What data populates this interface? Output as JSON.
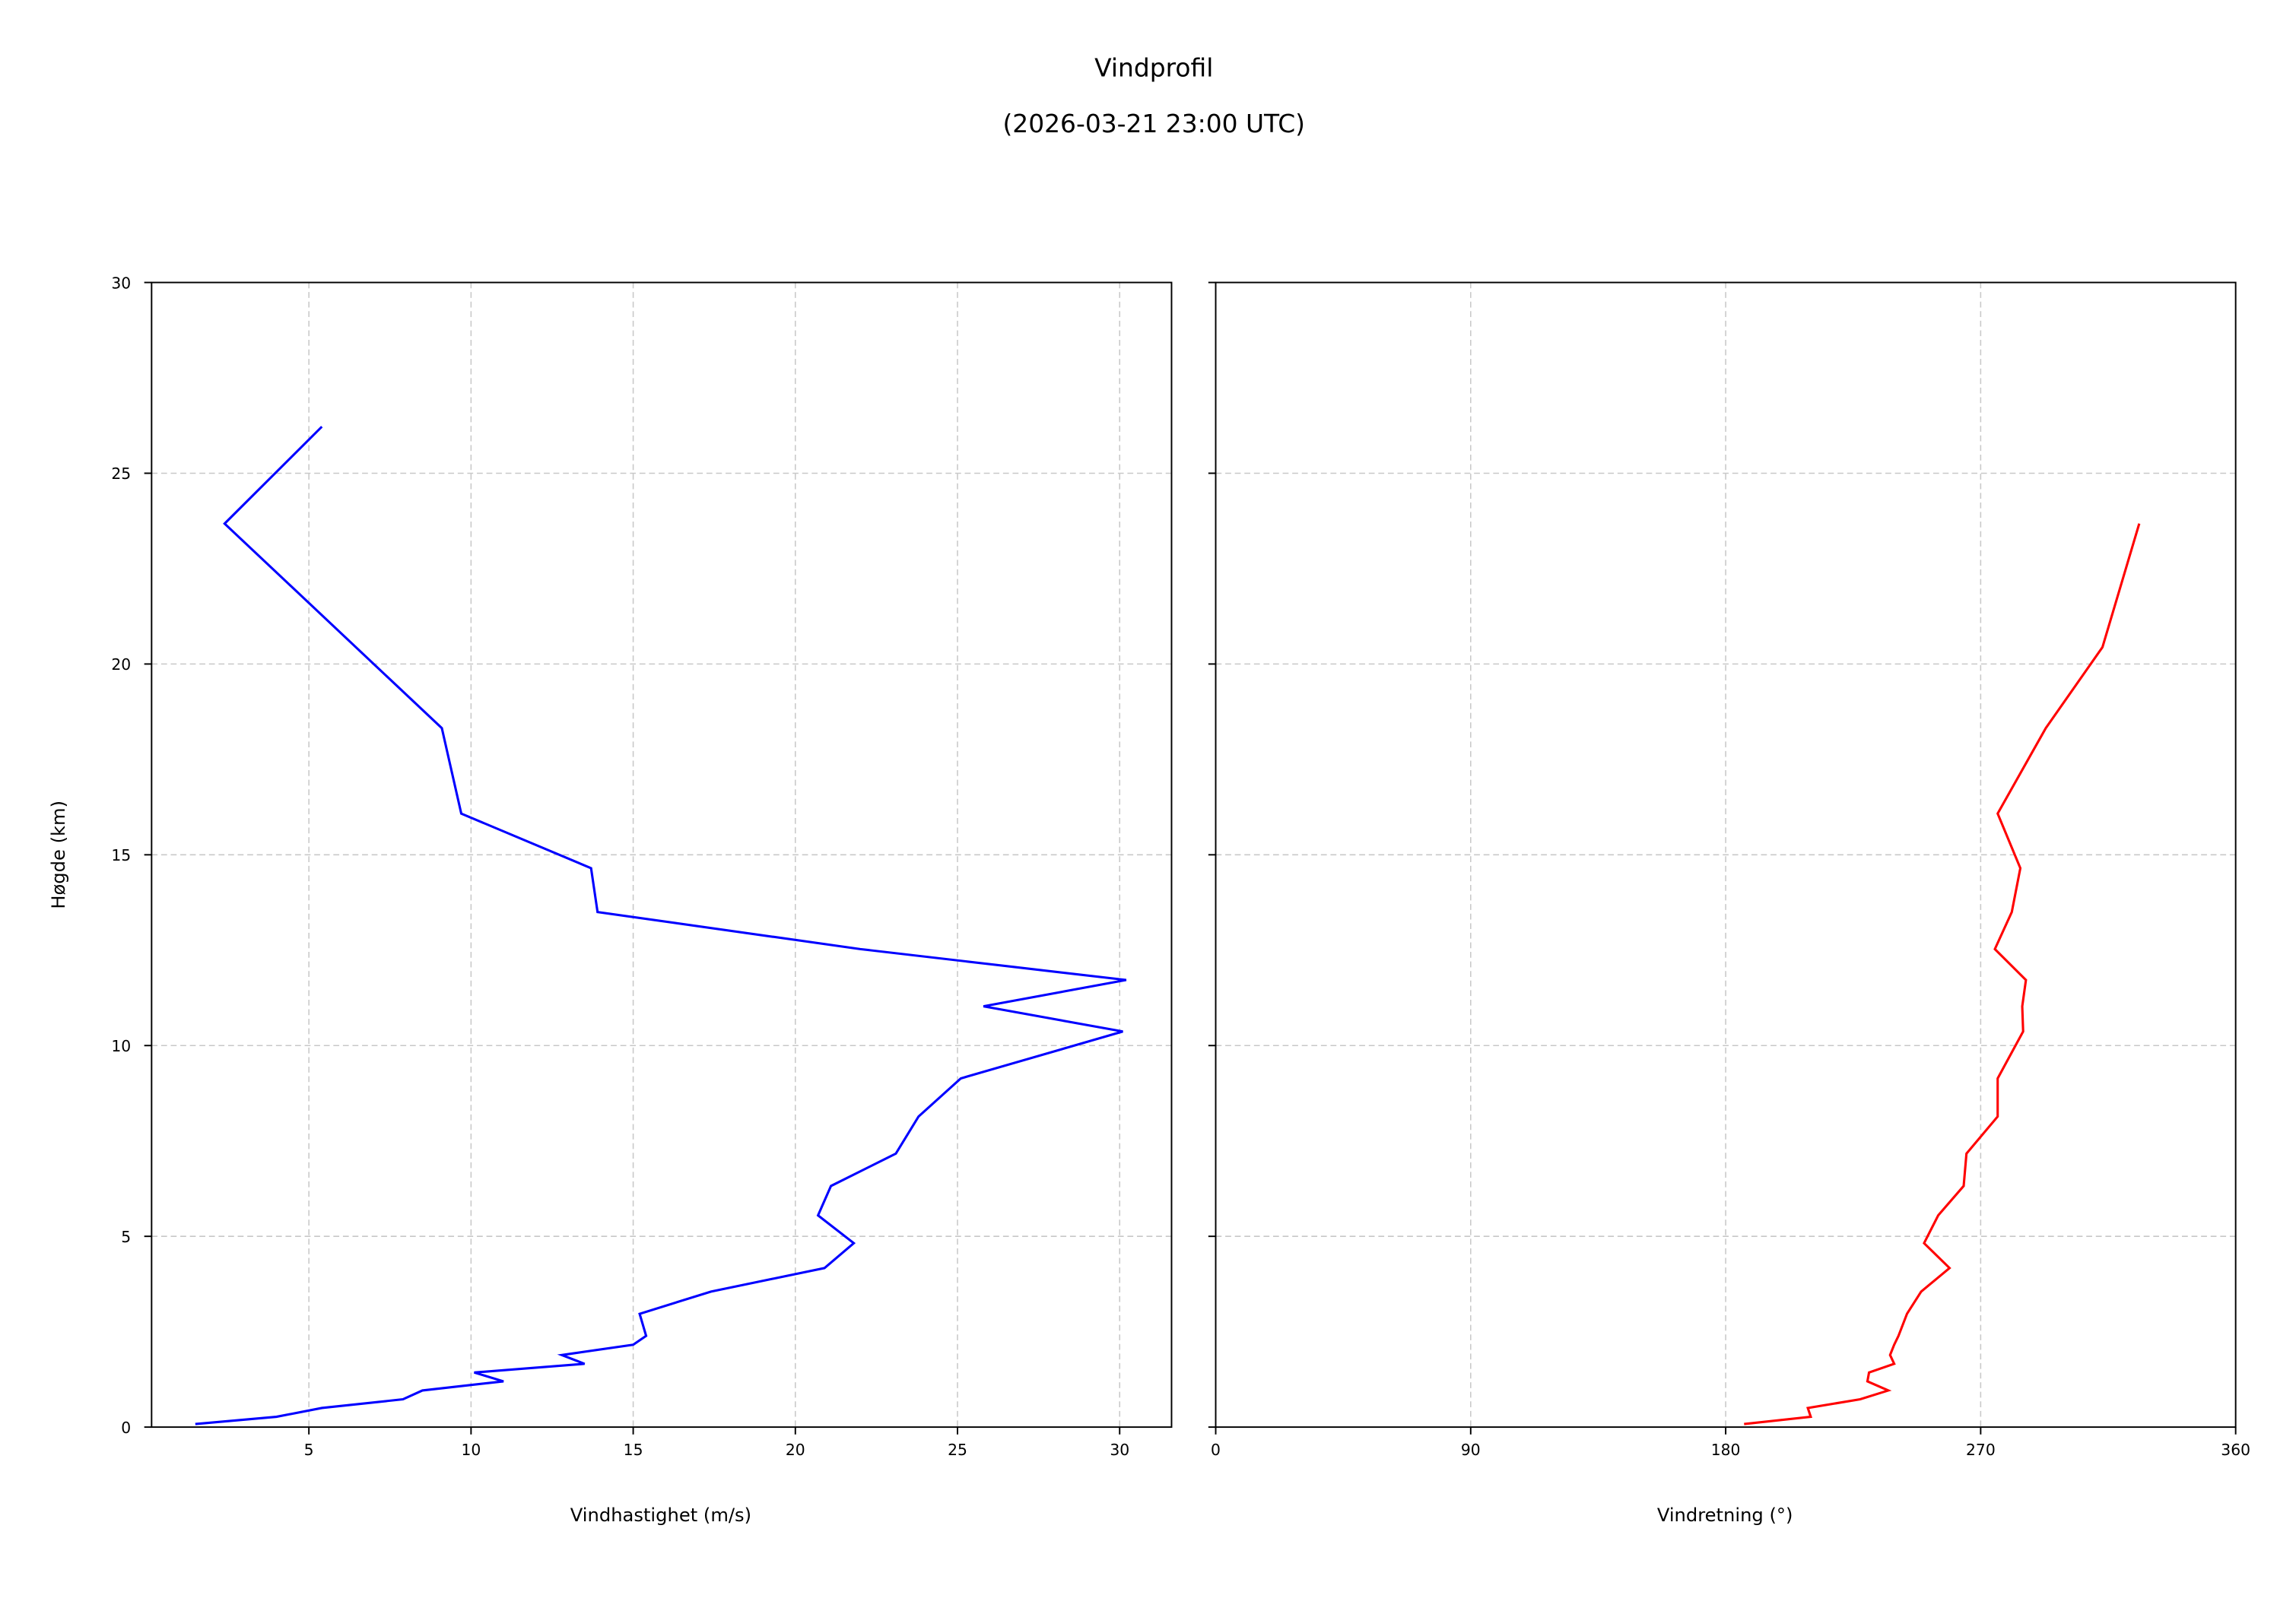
{
  "figure": {
    "title_line1": "Vindprofil",
    "title_line2": "(2026-03-21 23:00 UTC)"
  },
  "chart_data": [
    {
      "type": "line",
      "title": "",
      "xlabel": "Vindhastighet (m/s)",
      "ylabel": "Høgde (km)",
      "xlim": [
        0.15,
        31.6
      ],
      "ylim": [
        0,
        30
      ],
      "xticks": [
        5,
        10,
        15,
        20,
        25,
        30
      ],
      "yticks": [
        0,
        5,
        10,
        15,
        20,
        25,
        30
      ],
      "grid": true,
      "color": "#0000ff",
      "series": [
        {
          "name": "Vindhastighet",
          "x": [
            1.5,
            4.0,
            5.4,
            7.9,
            8.5,
            11.0,
            10.1,
            13.5,
            12.8,
            15.0,
            15.4,
            15.2,
            17.4,
            20.9,
            21.8,
            20.7,
            21.1,
            23.1,
            23.8,
            25.1,
            30.1,
            25.8,
            30.2,
            22.0,
            13.9,
            13.7,
            9.7,
            9.1,
            2.4,
            5.4
          ],
          "y": [
            0.08,
            0.27,
            0.5,
            0.73,
            0.96,
            1.2,
            1.43,
            1.66,
            1.89,
            2.16,
            2.39,
            2.97,
            3.55,
            4.17,
            4.82,
            5.55,
            6.32,
            7.17,
            8.14,
            9.14,
            10.37,
            11.03,
            11.72,
            12.53,
            13.5,
            14.65,
            16.08,
            18.32,
            23.68,
            26.22
          ]
        }
      ]
    },
    {
      "type": "line",
      "title": "",
      "xlabel": "Vindretning (°)",
      "ylabel": "",
      "xlim": [
        0,
        360
      ],
      "ylim": [
        0,
        30
      ],
      "xticks": [
        0,
        90,
        180,
        270,
        360
      ],
      "yticks": [
        0,
        5,
        10,
        15,
        20,
        25,
        30
      ],
      "grid": true,
      "color": "#ff0000",
      "series": [
        {
          "name": "Vindretning",
          "x": [
            186.5,
            210,
            209,
            227.5,
            237.4,
            230,
            230.6,
            239.5,
            238,
            239.5,
            241,
            244,
            249,
            259,
            250,
            255,
            264,
            265,
            276,
            276,
            285,
            284.7,
            286,
            275,
            281,
            284,
            276,
            293,
            313,
            326
          ],
          "y": [
            0.08,
            0.27,
            0.5,
            0.73,
            0.96,
            1.2,
            1.43,
            1.66,
            1.89,
            2.16,
            2.39,
            2.97,
            3.55,
            4.17,
            4.82,
            5.55,
            6.32,
            7.17,
            8.14,
            9.14,
            10.37,
            11.03,
            11.72,
            12.53,
            13.5,
            14.65,
            16.08,
            18.32,
            20.44,
            23.68
          ]
        }
      ]
    }
  ],
  "left_panel": {
    "xlabel": "Vindhastighet (m/s)",
    "ylabel": "Høgde (km)",
    "xtick_labels": [
      "5",
      "10",
      "15",
      "20",
      "25",
      "30"
    ],
    "ytick_labels": [
      "0",
      "5",
      "10",
      "15",
      "20",
      "25",
      "30"
    ]
  },
  "right_panel": {
    "xlabel": "Vindretning (°)",
    "xtick_labels": [
      "0",
      "90",
      "180",
      "270",
      "360"
    ]
  }
}
